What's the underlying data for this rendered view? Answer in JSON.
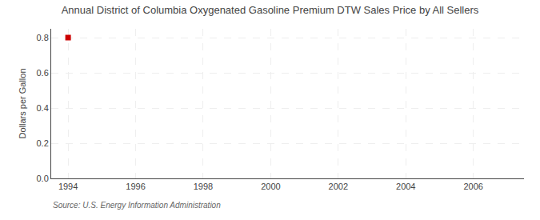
{
  "chart_data": {
    "type": "scatter",
    "title": "Annual District of Columbia Oxygenated Gasoline Premium DTW Sales Price by All Sellers",
    "y_label": "Dollars per Gallon",
    "annotations": [
      "Source: U.S. Energy Information Administration"
    ],
    "x": [
      1994
    ],
    "values": [
      0.8
    ],
    "color": "#cc0000",
    "marker": "square",
    "xlim": [
      1993.5,
      2007.5
    ],
    "xticks": [
      1994,
      1996,
      1998,
      2000,
      2002,
      2004,
      2006
    ],
    "ylim": [
      0.0,
      0.85
    ],
    "yticks": [
      {
        "value": 0.0,
        "label": "0.0"
      },
      0.2,
      0.4,
      0.6,
      0.8
    ],
    "grid": true
  }
}
